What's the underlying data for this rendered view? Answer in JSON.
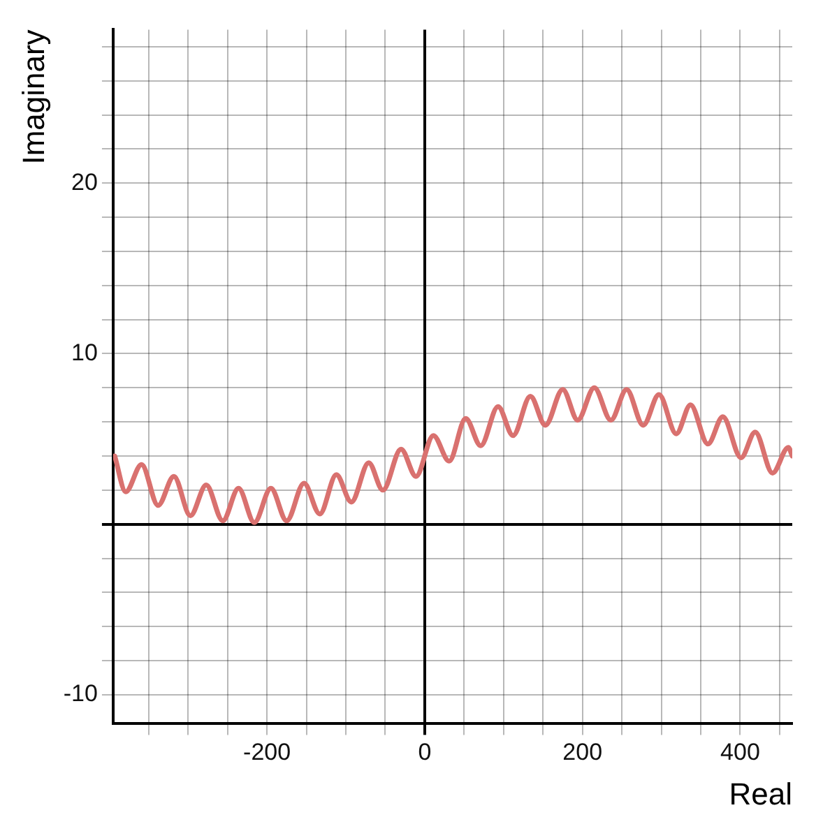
{
  "chart_data": {
    "type": "line",
    "xlabel": "Real",
    "ylabel": "Imaginary",
    "xlim": [
      -395,
      466
    ],
    "ylim": [
      -11.7,
      29
    ],
    "xticks": [
      {
        "value": -350,
        "label": null
      },
      {
        "value": -300,
        "label": null
      },
      {
        "value": -250,
        "label": null
      },
      -200,
      {
        "value": -150,
        "label": null
      },
      {
        "value": -100,
        "label": null
      },
      {
        "value": -50,
        "label": null
      },
      0,
      {
        "value": 50,
        "label": null
      },
      {
        "value": 100,
        "label": null
      },
      {
        "value": 150,
        "label": null
      },
      200,
      {
        "value": 250,
        "label": null
      },
      {
        "value": 300,
        "label": null
      },
      {
        "value": 350,
        "label": null
      },
      400,
      {
        "value": 450,
        "label": null
      }
    ],
    "yticks": [
      {
        "value": -10,
        "label": "-10"
      },
      {
        "value": -8,
        "label": null
      },
      {
        "value": -6,
        "label": null
      },
      {
        "value": -4,
        "label": null
      },
      {
        "value": -2,
        "label": null
      },
      {
        "value": 0,
        "label": null
      },
      {
        "value": 2,
        "label": null
      },
      {
        "value": 4,
        "label": null
      },
      {
        "value": 6,
        "label": null
      },
      {
        "value": 8,
        "label": null
      },
      10,
      {
        "value": 12,
        "label": null
      },
      {
        "value": 14,
        "label": null
      },
      {
        "value": 16,
        "label": null
      },
      {
        "value": 18,
        "label": null
      },
      20,
      {
        "value": 22,
        "label": null
      },
      {
        "value": 24,
        "label": null
      },
      {
        "value": 26,
        "label": null
      },
      {
        "value": 28,
        "label": null
      }
    ],
    "grid": true,
    "legend": false,
    "marker": "none",
    "line_style": "solid",
    "series": [
      {
        "color": "#d9716f",
        "x": [
          -393,
          -379,
          -359,
          -338,
          -318,
          -297,
          -277,
          -256,
          -236,
          -216,
          -195,
          -175,
          -153,
          -133,
          -112,
          -93,
          -71,
          -53,
          -30,
          -11,
          11,
          31,
          52,
          71,
          93,
          112,
          134,
          153,
          175,
          194,
          215,
          236,
          256,
          277,
          297,
          319,
          337,
          359,
          378,
          401,
          419,
          441,
          461,
          466
        ],
        "values": [
          4.0,
          1.9,
          3.5,
          1.1,
          2.8,
          0.5,
          2.3,
          0.2,
          2.1,
          0.1,
          2.1,
          0.2,
          2.4,
          0.6,
          2.9,
          1.3,
          3.6,
          2.0,
          4.4,
          2.8,
          5.2,
          3.7,
          6.2,
          4.6,
          6.9,
          5.2,
          7.5,
          5.8,
          7.9,
          6.1,
          8.0,
          6.1,
          7.9,
          5.8,
          7.6,
          5.3,
          7.0,
          4.7,
          6.3,
          3.9,
          5.4,
          3.0,
          4.5,
          4.0
        ]
      }
    ]
  }
}
